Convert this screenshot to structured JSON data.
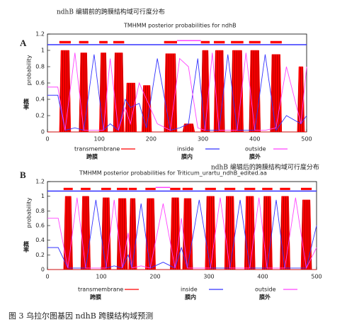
{
  "caption": "图 3 乌拉尔图基因 ndhB 跨膜结构域预测",
  "chart_data": [
    {
      "type": "area",
      "panel": "A",
      "annotation": "ndhB 编辑前的跨膜结构域可行度分布",
      "title": "TMHMM posterior probabilities for ndhB",
      "ylabel": "probability",
      "ylabel_cn": "概率",
      "xlim": [
        0,
        500
      ],
      "xticks": [
        0,
        100,
        200,
        300,
        400,
        500
      ],
      "ylim": [
        0,
        1.2
      ],
      "yticks": [
        0,
        0.2,
        0.4,
        0.6,
        0.8,
        1,
        1.2
      ],
      "tm_segments": [
        [
          23,
          45
        ],
        [
          61,
          79
        ],
        [
          100,
          116
        ],
        [
          127,
          148
        ],
        [
          225,
          250
        ],
        [
          296,
          313
        ],
        [
          321,
          342
        ],
        [
          354,
          378
        ],
        [
          389,
          411
        ],
        [
          430,
          452
        ]
      ],
      "outside_segments": [
        [
          250,
          296
        ]
      ],
      "series": [
        {
          "name": "transmembrane",
          "name_cn": "跨膜",
          "color": "#ff0000",
          "x": [
            0,
            23,
            26,
            42,
            45,
            61,
            64,
            76,
            79,
            100,
            103,
            113,
            116,
            127,
            130,
            145,
            148,
            150,
            153,
            169,
            172,
            182,
            185,
            198,
            201,
            225,
            228,
            247,
            250,
            261,
            264,
            281,
            284,
            296,
            299,
            310,
            313,
            321,
            324,
            339,
            342,
            354,
            357,
            375,
            378,
            389,
            392,
            408,
            411,
            430,
            433,
            449,
            452,
            482,
            485,
            493,
            496,
            500
          ],
          "values": [
            0,
            0,
            1,
            1,
            0,
            0,
            0.97,
            0.97,
            0,
            0,
            0.97,
            0.97,
            0,
            0,
            0.97,
            0.97,
            0,
            0,
            0.6,
            0.6,
            0,
            0,
            0.57,
            0.57,
            0,
            0,
            0.96,
            0.96,
            0,
            0,
            0.1,
            0.1,
            0,
            0,
            1,
            1,
            0,
            0,
            1,
            1,
            0,
            0,
            1,
            1,
            0,
            0,
            1,
            1,
            0,
            0,
            0.95,
            0.95,
            0,
            0,
            0.8,
            0.8,
            0,
            0
          ]
        },
        {
          "name": "inside",
          "name_cn": "膜内",
          "color": "#3333ff",
          "x": [
            0,
            20,
            34,
            53,
            70,
            90,
            108,
            121,
            137,
            150,
            160,
            177,
            191,
            212,
            237,
            255,
            272,
            290,
            304,
            318,
            331,
            348,
            366,
            383,
            400,
            420,
            441,
            461,
            489,
            500
          ],
          "values": [
            0.45,
            0.45,
            0.02,
            0.05,
            0.02,
            0.95,
            0.02,
            0.1,
            0.02,
            0.4,
            0.3,
            0.35,
            0.05,
            0.9,
            0.02,
            0.05,
            0.1,
            0.9,
            0.02,
            0.02,
            0.02,
            0.95,
            0.02,
            0.02,
            0.02,
            0.95,
            0.02,
            0.2,
            0.1,
            0.2
          ]
        },
        {
          "name": "outside",
          "name_cn": "膜外",
          "color": "#ff44ff",
          "x": [
            0,
            20,
            34,
            53,
            70,
            90,
            108,
            121,
            137,
            150,
            160,
            177,
            191,
            212,
            237,
            255,
            272,
            290,
            304,
            318,
            331,
            348,
            366,
            383,
            400,
            420,
            441,
            461,
            489,
            500
          ],
          "values": [
            0.55,
            0.55,
            0.02,
            0.97,
            0.02,
            0.02,
            0.02,
            0.9,
            0.02,
            0.3,
            0.1,
            0.6,
            0.4,
            0.1,
            0.02,
            0.9,
            0.8,
            0.05,
            0.02,
            0.97,
            0.02,
            0.02,
            0.02,
            0.97,
            0.02,
            0.02,
            0.05,
            0.8,
            0.1,
            0.8
          ]
        }
      ]
    },
    {
      "type": "area",
      "panel": "B",
      "annotation": "ndhB 编辑后的跨膜结构域可行度分布",
      "title": "TMHMM posterior probabilities for Triticum_urartu_ndhB_edited.aa",
      "ylabel": "probability",
      "ylabel_cn": "概率",
      "xlim": [
        0,
        500
      ],
      "xticks": [
        0,
        100,
        200,
        300,
        400,
        500
      ],
      "ylim": [
        0,
        1.2
      ],
      "yticks": [
        0,
        0.2,
        0.4,
        0.6,
        0.8,
        1,
        1.2
      ],
      "tm_segments": [
        [
          30,
          47
        ],
        [
          62,
          80
        ],
        [
          100,
          118
        ],
        [
          129,
          149
        ],
        [
          151,
          166
        ],
        [
          182,
          201
        ],
        [
          228,
          247
        ],
        [
          251,
          270
        ],
        [
          293,
          313
        ],
        [
          329,
          349
        ],
        [
          366,
          386
        ],
        [
          399,
          418
        ],
        [
          432,
          451
        ],
        [
          471,
          491
        ]
      ],
      "outside_segments": [
        [
          201,
          228
        ]
      ],
      "series": [
        {
          "name": "transmembrane",
          "name_cn": "跨膜",
          "color": "#ff0000",
          "x": [
            0,
            30,
            33,
            44,
            47,
            62,
            65,
            77,
            80,
            100,
            103,
            115,
            118,
            129,
            132,
            146,
            149,
            151,
            154,
            163,
            166,
            182,
            185,
            198,
            201,
            228,
            231,
            244,
            247,
            251,
            254,
            267,
            270,
            293,
            296,
            310,
            313,
            329,
            332,
            346,
            349,
            366,
            369,
            383,
            386,
            399,
            402,
            415,
            418,
            432,
            435,
            448,
            451,
            471,
            474,
            488,
            491,
            500
          ],
          "values": [
            0,
            0,
            1,
            1,
            0,
            0,
            1,
            1,
            0,
            0,
            0.98,
            0.98,
            0,
            0,
            0.97,
            0.97,
            0,
            0,
            0.97,
            0.97,
            0,
            0,
            0.97,
            0.97,
            0,
            0,
            0.98,
            0.98,
            0,
            0,
            0.97,
            0.97,
            0,
            0,
            1,
            1,
            0,
            0,
            1,
            1,
            0,
            0,
            1,
            1,
            0,
            0,
            1,
            1,
            0,
            0,
            1,
            1,
            0,
            0,
            0.95,
            0.95,
            0,
            0
          ]
        },
        {
          "name": "inside",
          "name_cn": "膜内",
          "color": "#3333ff",
          "x": [
            0,
            20,
            38,
            55,
            71,
            90,
            109,
            124,
            139,
            150,
            157,
            174,
            191,
            215,
            237,
            249,
            260,
            282,
            303,
            321,
            339,
            358,
            376,
            393,
            408,
            425,
            441,
            461,
            481,
            500
          ],
          "values": [
            0.3,
            0.3,
            0.02,
            0.02,
            0.02,
            0.95,
            0.02,
            0.05,
            0.02,
            0.2,
            0.02,
            0.9,
            0.02,
            0.1,
            0.02,
            0.3,
            0.02,
            0.95,
            0.02,
            0.02,
            0.02,
            0.95,
            0.02,
            0.02,
            0.02,
            0.95,
            0.02,
            0.02,
            0.02,
            0.6
          ]
        },
        {
          "name": "outside",
          "name_cn": "膜外",
          "color": "#ff44ff",
          "x": [
            0,
            20,
            38,
            55,
            71,
            90,
            109,
            124,
            139,
            150,
            157,
            174,
            191,
            215,
            237,
            249,
            260,
            282,
            303,
            321,
            339,
            358,
            376,
            393,
            408,
            425,
            441,
            461,
            481,
            500
          ],
          "values": [
            0.7,
            0.7,
            0.02,
            0.98,
            0.02,
            0.02,
            0.02,
            0.95,
            0.02,
            0.5,
            0.02,
            0.05,
            0.02,
            0.9,
            0.02,
            0.7,
            0.02,
            0.02,
            0.02,
            0.98,
            0.02,
            0.02,
            0.02,
            0.98,
            0.02,
            0.02,
            0.02,
            0.98,
            0.02,
            0.3
          ]
        }
      ]
    }
  ]
}
